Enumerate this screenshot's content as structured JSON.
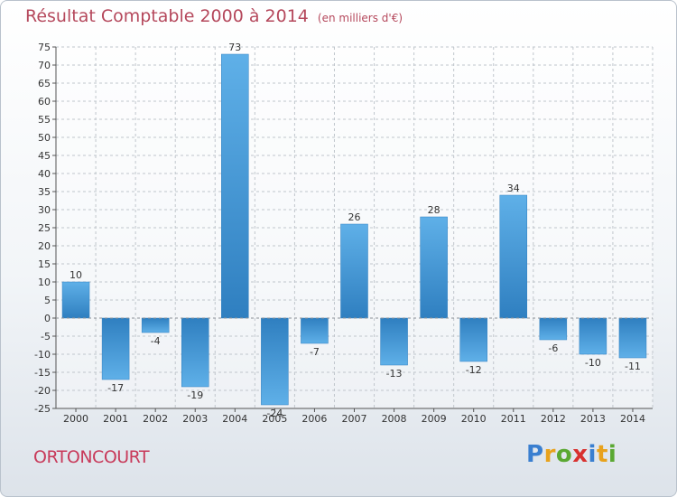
{
  "title": "Résultat Comptable 2000 à 2014",
  "subtitle": "(en milliers d'€)",
  "commune": "ORTONCOURT",
  "logo": {
    "text": "Proxiti",
    "letters": [
      {
        "ch": "P",
        "color": "#3a7fd0"
      },
      {
        "ch": "r",
        "color": "#e8a21c"
      },
      {
        "ch": "o",
        "color": "#5aa832"
      },
      {
        "ch": "x",
        "color": "#d8312f"
      },
      {
        "ch": "i",
        "color": "#3a7fd0"
      },
      {
        "ch": "t",
        "color": "#e8a21c"
      },
      {
        "ch": "i",
        "color": "#5aa832"
      }
    ]
  },
  "colors": {
    "bar_light": "#5fb0e8",
    "bar_dark": "#2f7fc0",
    "grid": "#c0c6cc",
    "title": "#b5485c"
  },
  "chart_data": {
    "type": "bar",
    "title": "Résultat Comptable 2000 à 2014",
    "subtitle": "(en milliers d'€)",
    "xlabel": "",
    "ylabel": "",
    "categories": [
      "2000",
      "2001",
      "2002",
      "2003",
      "2004",
      "2005",
      "2006",
      "2007",
      "2008",
      "2009",
      "2010",
      "2011",
      "2012",
      "2013",
      "2014"
    ],
    "values": [
      10,
      -17,
      -4,
      -19,
      73,
      -24,
      -7,
      26,
      -13,
      28,
      -12,
      34,
      -6,
      -10,
      -11
    ],
    "ylim": [
      -25,
      75
    ],
    "ytick_step": 5,
    "grid": true,
    "grid_style": "dashed"
  }
}
